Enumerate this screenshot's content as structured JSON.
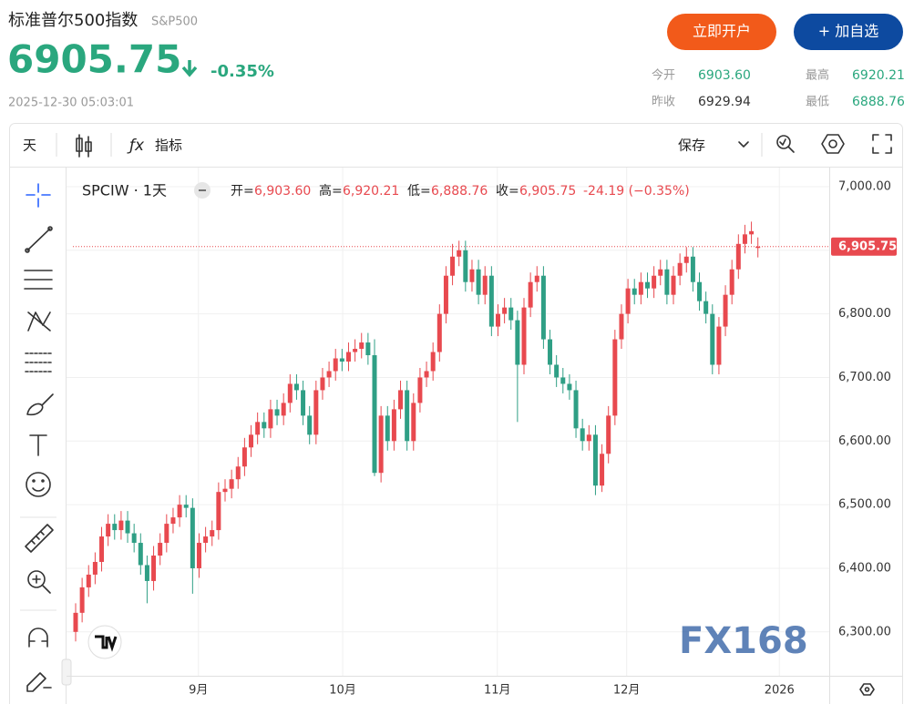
{
  "header": {
    "title": "标准普尔500指数",
    "symbol": "S&P500",
    "price": "6905.75",
    "change": "-0.35%",
    "timestamp": "2025-12-30 05:03:01",
    "buttons": [
      "立即开户",
      "+ 加自选"
    ],
    "stats": [
      {
        "label": "今开",
        "value": "6903.60"
      },
      {
        "label": "最高",
        "value": "6920.21"
      },
      {
        "label": "昨收",
        "value": "6929.94"
      },
      {
        "label": "最低",
        "value": "6888.76"
      }
    ]
  },
  "toolbar": {
    "interval": "天",
    "indicators": "指标",
    "save": "保存"
  },
  "watermark": "FX168",
  "chart_data": {
    "type": "candlestick",
    "legend": {
      "title": "SPCIW · 1天",
      "items": [
        {
          "label": "开=",
          "value": "6,903.60"
        },
        {
          "label": "高=",
          "value": "6,920.21"
        },
        {
          "label": "低=",
          "value": "6,888.76"
        },
        {
          "label": "收=",
          "value": "6,905.75"
        }
      ],
      "change": "-24.19 (−0.35%)"
    },
    "up_color": "#e8494f",
    "down_color": "#2f9f85",
    "open": [
      6300,
      6330,
      6370,
      6390,
      6410,
      6450,
      6470,
      6460,
      6475,
      6455,
      6440,
      6405,
      6380,
      6420,
      6440,
      6470,
      6480,
      6500,
      6495,
      6400,
      6440,
      6450,
      6460,
      6520,
      6525,
      6540,
      6560,
      6590,
      6610,
      6630,
      6620,
      6650,
      6640,
      6660,
      6690,
      6680,
      6640,
      6610,
      6680,
      6700,
      6710,
      6730,
      6725,
      6740,
      6745,
      6755,
      6735,
      6550,
      6640,
      6600,
      6650,
      6680,
      6600,
      6660,
      6700,
      6710,
      6740,
      6800,
      6860,
      6890,
      6900,
      6850,
      6870,
      6830,
      6860,
      6780,
      6800,
      6810,
      6790,
      6720,
      6810,
      6850,
      6860,
      6760,
      6720,
      6700,
      6690,
      6680,
      6620,
      6600,
      6610,
      6530,
      6580,
      6640,
      6760,
      6800,
      6840,
      6830,
      6850,
      6840,
      6860,
      6870,
      6830,
      6860,
      6880,
      6890,
      6850,
      6820,
      6800,
      6720,
      6780,
      6830,
      6870,
      6910,
      6925,
      6903.6
    ],
    "high": [
      6345,
      6385,
      6405,
      6425,
      6465,
      6485,
      6485,
      6490,
      6490,
      6470,
      6455,
      6420,
      6435,
      6455,
      6485,
      6495,
      6515,
      6515,
      6510,
      6455,
      6465,
      6475,
      6535,
      6540,
      6555,
      6575,
      6605,
      6625,
      6645,
      6645,
      6665,
      6665,
      6675,
      6705,
      6705,
      6695,
      6655,
      6695,
      6715,
      6725,
      6745,
      6745,
      6755,
      6760,
      6770,
      6770,
      6760,
      6655,
      6655,
      6665,
      6695,
      6695,
      6675,
      6715,
      6725,
      6755,
      6815,
      6875,
      6910,
      6915,
      6915,
      6885,
      6885,
      6875,
      6875,
      6815,
      6825,
      6825,
      6805,
      6825,
      6865,
      6875,
      6875,
      6775,
      6735,
      6715,
      6705,
      6695,
      6635,
      6625,
      6625,
      6595,
      6655,
      6775,
      6815,
      6855,
      6855,
      6865,
      6865,
      6875,
      6885,
      6885,
      6875,
      6895,
      6905,
      6905,
      6865,
      6835,
      6815,
      6795,
      6845,
      6885,
      6925,
      6940,
      6945,
      6920.21
    ],
    "low": [
      6285,
      6315,
      6355,
      6375,
      6395,
      6435,
      6445,
      6445,
      6440,
      6425,
      6390,
      6345,
      6365,
      6405,
      6425,
      6455,
      6465,
      6480,
      6360,
      6385,
      6425,
      6435,
      6445,
      6505,
      6510,
      6525,
      6545,
      6575,
      6595,
      6605,
      6605,
      6625,
      6625,
      6645,
      6665,
      6625,
      6595,
      6595,
      6665,
      6685,
      6695,
      6710,
      6710,
      6725,
      6730,
      6720,
      6545,
      6535,
      6585,
      6585,
      6635,
      6585,
      6585,
      6645,
      6685,
      6695,
      6725,
      6785,
      6845,
      6875,
      6835,
      6835,
      6815,
      6815,
      6765,
      6765,
      6785,
      6775,
      6630,
      6705,
      6795,
      6835,
      6745,
      6705,
      6685,
      6675,
      6665,
      6605,
      6585,
      6585,
      6515,
      6520,
      6565,
      6625,
      6745,
      6785,
      6815,
      6815,
      6825,
      6825,
      6845,
      6815,
      6815,
      6845,
      6865,
      6835,
      6805,
      6785,
      6705,
      6705,
      6765,
      6815,
      6855,
      6895,
      6910,
      6888.76
    ],
    "close": [
      6330,
      6370,
      6390,
      6410,
      6450,
      6470,
      6460,
      6475,
      6455,
      6440,
      6405,
      6380,
      6420,
      6440,
      6470,
      6480,
      6500,
      6495,
      6400,
      6440,
      6450,
      6460,
      6520,
      6525,
      6540,
      6560,
      6590,
      6610,
      6630,
      6620,
      6650,
      6640,
      6660,
      6690,
      6680,
      6640,
      6610,
      6680,
      6700,
      6710,
      6730,
      6725,
      6740,
      6745,
      6755,
      6735,
      6550,
      6640,
      6600,
      6650,
      6680,
      6600,
      6660,
      6700,
      6710,
      6740,
      6800,
      6860,
      6890,
      6900,
      6850,
      6870,
      6830,
      6860,
      6780,
      6800,
      6810,
      6790,
      6720,
      6810,
      6850,
      6860,
      6760,
      6720,
      6700,
      6690,
      6680,
      6620,
      6600,
      6610,
      6530,
      6580,
      6640,
      6760,
      6800,
      6840,
      6830,
      6850,
      6840,
      6860,
      6870,
      6830,
      6860,
      6880,
      6890,
      6850,
      6820,
      6800,
      6720,
      6780,
      6830,
      6870,
      6910,
      6925,
      6930,
      6905.75
    ],
    "last_price_label": "6,905.75",
    "ylim": [
      6231,
      7030
    ],
    "yticks": [
      {
        "value": 6300,
        "label": "6,300.00"
      },
      {
        "value": 6400,
        "label": "6,400.00"
      },
      {
        "value": 6500,
        "label": "6,500.00"
      },
      {
        "value": 6600,
        "label": "6,600.00"
      },
      {
        "value": 6700,
        "label": "6,700.00"
      },
      {
        "value": 6800,
        "label": "6,800.00"
      },
      {
        "value": 6900,
        "label": "6,900.00"
      },
      {
        "value": 7000,
        "label": "7,000.00"
      }
    ],
    "xlim": [
      -0.42,
      115.98
    ],
    "xticks": [
      {
        "value": 18.9,
        "label": "9月"
      },
      {
        "value": 41.1,
        "label": "10月"
      },
      {
        "value": 64.9,
        "label": "11月"
      },
      {
        "value": 84.8,
        "label": "12月"
      },
      {
        "value": 108.3,
        "label": "2026"
      }
    ],
    "grid": true
  }
}
